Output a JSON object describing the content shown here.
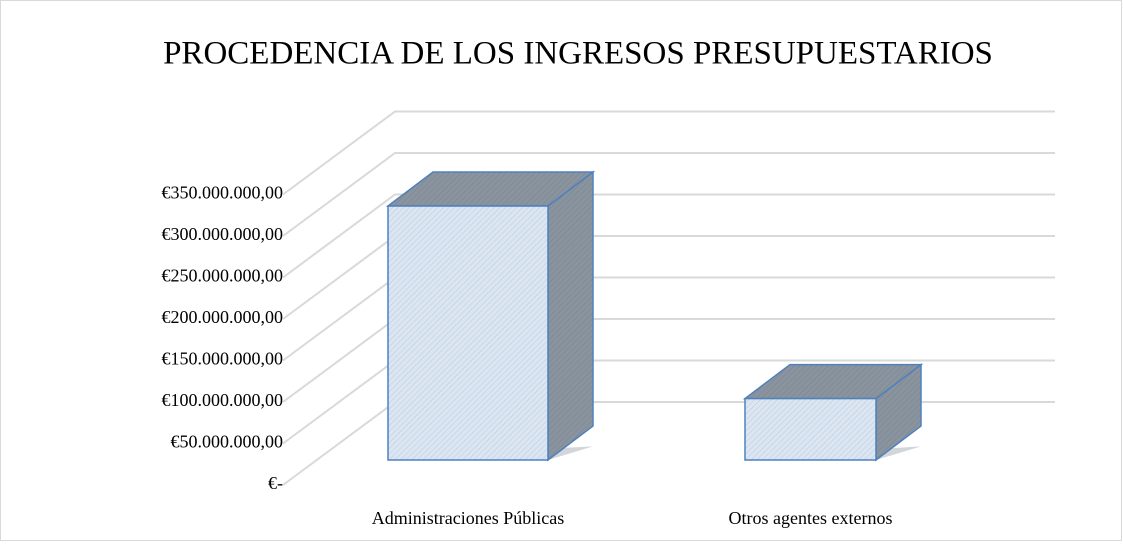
{
  "chart_data": {
    "type": "bar3d",
    "title": "PROCEDENCIA DE LOS INGRESOS PRESUPUESTARIOS",
    "categories": [
      "Administraciones Públicas",
      "Otros agentes externos"
    ],
    "values": [
      306000000,
      74000000
    ],
    "color": "#dce6f2",
    "ylim": [
      0,
      350000000
    ],
    "yticks": [
      {
        "value": 0,
        "label": "€-"
      },
      {
        "value": 50000000,
        "label": "€50.000.000,00"
      },
      {
        "value": 100000000,
        "label": "€100.000.000,00"
      },
      {
        "value": 150000000,
        "label": "€150.000.000,00"
      },
      {
        "value": 200000000,
        "label": "€200.000.000,00"
      },
      {
        "value": 250000000,
        "label": "€250.000.000,00"
      },
      {
        "value": 300000000,
        "label": "€300.000.000,00"
      },
      {
        "value": 350000000,
        "label": "€350.000.000,00"
      }
    ],
    "grid": true
  }
}
